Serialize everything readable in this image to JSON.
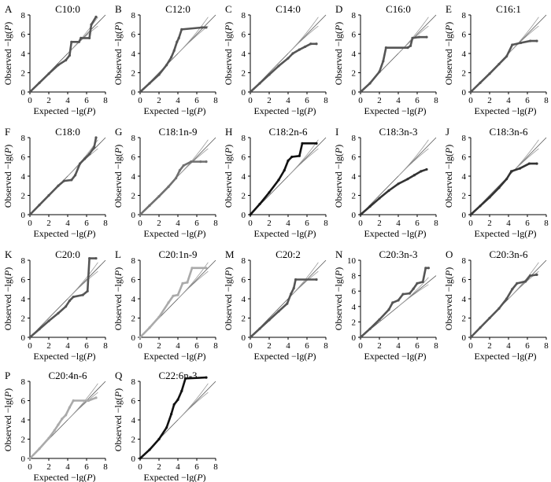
{
  "figure": {
    "xlabel": "Expected −lg(",
    "ylabel": "Observed −lg(",
    "p_symbol": "P",
    "close_paren": ")"
  },
  "chart_data": [
    {
      "id": "A",
      "letter": "A",
      "title": "C10:0",
      "type": "scatter",
      "xlim": [
        0,
        8
      ],
      "ylim": [
        0,
        8
      ],
      "x_ticks": [
        "0",
        "2",
        "4",
        "6",
        "8"
      ],
      "y_ticks": [
        "0",
        "2",
        "4",
        "6",
        "8"
      ],
      "color": "#555555",
      "points": [
        [
          0,
          0
        ],
        [
          1,
          0.95
        ],
        [
          2,
          1.9
        ],
        [
          3,
          2.8
        ],
        [
          3.8,
          3.3
        ],
        [
          4.2,
          3.8
        ],
        [
          4.4,
          5.2
        ],
        [
          5.2,
          5.2
        ],
        [
          5.4,
          5.6
        ],
        [
          6.3,
          5.6
        ],
        [
          6.5,
          7.0
        ],
        [
          7.0,
          7.8
        ]
      ]
    },
    {
      "id": "B",
      "letter": "B",
      "title": "C12:0",
      "type": "scatter",
      "xlim": [
        0,
        8
      ],
      "ylim": [
        0,
        8
      ],
      "x_ticks": [
        "0",
        "2",
        "4",
        "6",
        "8"
      ],
      "y_ticks": [
        "0",
        "2",
        "4",
        "6",
        "8"
      ],
      "color": "#555555",
      "points": [
        [
          0,
          0
        ],
        [
          1,
          0.9
        ],
        [
          2,
          1.8
        ],
        [
          2.8,
          2.8
        ],
        [
          3.3,
          3.6
        ],
        [
          3.6,
          4.3
        ],
        [
          3.9,
          5.2
        ],
        [
          4.1,
          5.6
        ],
        [
          4.4,
          6.5
        ],
        [
          6.6,
          6.7
        ],
        [
          7.0,
          6.7
        ]
      ]
    },
    {
      "id": "C",
      "letter": "C",
      "title": "C14:0",
      "type": "scatter",
      "xlim": [
        0,
        8
      ],
      "ylim": [
        0,
        8
      ],
      "x_ticks": [
        "0",
        "2",
        "4",
        "6",
        "8"
      ],
      "y_ticks": [
        "0",
        "2",
        "4",
        "6",
        "8"
      ],
      "color": "#555555",
      "points": [
        [
          0,
          0
        ],
        [
          1,
          0.9
        ],
        [
          2,
          1.8
        ],
        [
          3,
          2.7
        ],
        [
          4,
          3.5
        ],
        [
          4.5,
          4.0
        ],
        [
          5.2,
          4.4
        ],
        [
          5.8,
          4.7
        ],
        [
          6.4,
          5.0
        ],
        [
          7.0,
          5.0
        ]
      ]
    },
    {
      "id": "D",
      "letter": "D",
      "title": "C16:0",
      "type": "scatter",
      "xlim": [
        0,
        8
      ],
      "ylim": [
        0,
        8
      ],
      "x_ticks": [
        "0",
        "2",
        "4",
        "6",
        "8"
      ],
      "y_ticks": [
        "0",
        "2",
        "4",
        "6",
        "8"
      ],
      "color": "#555555",
      "points": [
        [
          0,
          0
        ],
        [
          1,
          0.9
        ],
        [
          2,
          2.1
        ],
        [
          2.4,
          3.2
        ],
        [
          2.7,
          4.6
        ],
        [
          5.0,
          4.6
        ],
        [
          5.3,
          4.8
        ],
        [
          5.5,
          5.6
        ],
        [
          6.2,
          5.7
        ],
        [
          7.0,
          5.7
        ]
      ]
    },
    {
      "id": "E",
      "letter": "E",
      "title": "C16:1",
      "type": "scatter",
      "xlim": [
        0,
        8
      ],
      "ylim": [
        0,
        8
      ],
      "x_ticks": [
        "0",
        "2",
        "4",
        "6",
        "8"
      ],
      "y_ticks": [
        "0",
        "2",
        "4",
        "6",
        "8"
      ],
      "color": "#555555",
      "points": [
        [
          0,
          0
        ],
        [
          1,
          0.95
        ],
        [
          2,
          1.9
        ],
        [
          3,
          2.9
        ],
        [
          3.8,
          3.7
        ],
        [
          4.4,
          4.9
        ],
        [
          5.3,
          5.1
        ],
        [
          6.3,
          5.3
        ],
        [
          7.0,
          5.3
        ]
      ]
    },
    {
      "id": "F",
      "letter": "F",
      "title": "C18:0",
      "type": "scatter",
      "xlim": [
        0,
        8
      ],
      "ylim": [
        0,
        8
      ],
      "x_ticks": [
        "0",
        "2",
        "4",
        "6",
        "8"
      ],
      "y_ticks": [
        "0",
        "2",
        "4",
        "6",
        "8"
      ],
      "color": "#555555",
      "points": [
        [
          0,
          0
        ],
        [
          1,
          1.0
        ],
        [
          2,
          2.0
        ],
        [
          3,
          3.0
        ],
        [
          3.6,
          3.5
        ],
        [
          4.4,
          3.6
        ],
        [
          4.8,
          4.1
        ],
        [
          5.3,
          5.3
        ],
        [
          5.8,
          5.8
        ],
        [
          6.3,
          6.3
        ],
        [
          6.8,
          7.0
        ],
        [
          7.0,
          8.0
        ]
      ]
    },
    {
      "id": "G",
      "letter": "G",
      "title": "C18:1n-9",
      "type": "scatter",
      "xlim": [
        0,
        8
      ],
      "ylim": [
        0,
        8
      ],
      "x_ticks": [
        "0",
        "2",
        "4",
        "6",
        "8"
      ],
      "y_ticks": [
        "0",
        "2",
        "4",
        "6",
        "8"
      ],
      "color": "#707070",
      "points": [
        [
          0,
          0
        ],
        [
          1,
          0.95
        ],
        [
          2,
          1.9
        ],
        [
          3,
          2.9
        ],
        [
          3.8,
          3.8
        ],
        [
          4.2,
          4.6
        ],
        [
          4.6,
          5.1
        ],
        [
          5.4,
          5.5
        ],
        [
          6.4,
          5.5
        ],
        [
          7.0,
          5.5
        ]
      ]
    },
    {
      "id": "H",
      "letter": "H",
      "title": "C18:2n-6",
      "type": "scatter",
      "xlim": [
        0,
        8
      ],
      "ylim": [
        0,
        8
      ],
      "x_ticks": [
        "0",
        "2",
        "4",
        "6",
        "8"
      ],
      "y_ticks": [
        "0",
        "2",
        "4",
        "6",
        "8"
      ],
      "color": "#111111",
      "points": [
        [
          0,
          0
        ],
        [
          1,
          1.1
        ],
        [
          2,
          2.3
        ],
        [
          3,
          3.6
        ],
        [
          3.6,
          4.6
        ],
        [
          4.0,
          5.6
        ],
        [
          4.4,
          6.0
        ],
        [
          5.2,
          6.1
        ],
        [
          5.5,
          7.4
        ],
        [
          7.0,
          7.4
        ]
      ]
    },
    {
      "id": "I",
      "letter": "I",
      "title": "C18:3n-3",
      "type": "scatter",
      "xlim": [
        0,
        8
      ],
      "ylim": [
        0,
        8
      ],
      "x_ticks": [
        "0",
        "2",
        "4",
        "6",
        "8"
      ],
      "y_ticks": [
        "0",
        "2",
        "4",
        "6",
        "8"
      ],
      "color": "#333333",
      "points": [
        [
          0,
          0
        ],
        [
          1,
          0.85
        ],
        [
          2,
          1.7
        ],
        [
          3,
          2.5
        ],
        [
          4,
          3.2
        ],
        [
          5,
          3.7
        ],
        [
          5.7,
          4.1
        ],
        [
          6.4,
          4.5
        ],
        [
          7.0,
          4.7
        ]
      ]
    },
    {
      "id": "J",
      "letter": "J",
      "title": "C18:3n-6",
      "type": "scatter",
      "xlim": [
        0,
        8
      ],
      "ylim": [
        0,
        8
      ],
      "x_ticks": [
        "0",
        "2",
        "4",
        "6",
        "8"
      ],
      "y_ticks": [
        "0",
        "2",
        "4",
        "6",
        "8"
      ],
      "color": "#333333",
      "points": [
        [
          0,
          0
        ],
        [
          1,
          0.9
        ],
        [
          2,
          1.8
        ],
        [
          3,
          2.8
        ],
        [
          3.8,
          3.7
        ],
        [
          4.3,
          4.5
        ],
        [
          5.2,
          4.8
        ],
        [
          6.2,
          5.3
        ],
        [
          7.0,
          5.3
        ]
      ]
    },
    {
      "id": "K",
      "letter": "K",
      "title": "C20:0",
      "type": "scatter",
      "xlim": [
        0,
        8
      ],
      "ylim": [
        0,
        8
      ],
      "x_ticks": [
        "0",
        "2",
        "4",
        "6",
        "8"
      ],
      "y_ticks": [
        "0",
        "2",
        "4",
        "6",
        "8"
      ],
      "color": "#555555",
      "points": [
        [
          0,
          0
        ],
        [
          1,
          0.85
        ],
        [
          2,
          1.7
        ],
        [
          3,
          2.5
        ],
        [
          3.8,
          3.2
        ],
        [
          4.2,
          3.8
        ],
        [
          4.6,
          4.2
        ],
        [
          5.6,
          4.4
        ],
        [
          6.1,
          4.8
        ],
        [
          6.3,
          8.2
        ],
        [
          7.0,
          8.2
        ]
      ]
    },
    {
      "id": "L",
      "letter": "L",
      "title": "C20:1n-9",
      "type": "scatter",
      "xlim": [
        0,
        8
      ],
      "ylim": [
        0,
        8
      ],
      "x_ticks": [
        "0",
        "2",
        "4",
        "6",
        "8"
      ],
      "y_ticks": [
        "0",
        "2",
        "4",
        "6",
        "8"
      ],
      "color": "#aaaaaa",
      "points": [
        [
          0,
          0
        ],
        [
          1,
          1.0
        ],
        [
          2,
          2.1
        ],
        [
          3,
          3.6
        ],
        [
          3.5,
          4.3
        ],
        [
          4.0,
          4.4
        ],
        [
          4.5,
          5.6
        ],
        [
          5.0,
          5.7
        ],
        [
          5.5,
          7.2
        ],
        [
          7.0,
          7.2
        ]
      ]
    },
    {
      "id": "M",
      "letter": "M",
      "title": "C20:2",
      "type": "scatter",
      "xlim": [
        0,
        8
      ],
      "ylim": [
        0,
        8
      ],
      "x_ticks": [
        "0",
        "2",
        "4",
        "6",
        "8"
      ],
      "y_ticks": [
        "0",
        "2",
        "4",
        "6",
        "8"
      ],
      "color": "#555555",
      "points": [
        [
          0,
          0
        ],
        [
          1,
          0.9
        ],
        [
          2,
          1.8
        ],
        [
          3,
          2.7
        ],
        [
          3.9,
          3.5
        ],
        [
          4.3,
          4.5
        ],
        [
          4.6,
          5.1
        ],
        [
          4.8,
          6.0
        ],
        [
          7.0,
          6.0
        ]
      ]
    },
    {
      "id": "N",
      "letter": "N",
      "title": "C20:3n-3",
      "type": "scatter",
      "xlim": [
        0,
        8
      ],
      "ylim": [
        0,
        10
      ],
      "x_ticks": [
        "0",
        "2",
        "4",
        "6",
        "8"
      ],
      "y_ticks": [
        "0",
        "2",
        "4",
        "6",
        "8",
        "10"
      ],
      "color": "#555555",
      "points": [
        [
          0,
          0
        ],
        [
          1,
          1.1
        ],
        [
          2,
          2.3
        ],
        [
          3,
          3.6
        ],
        [
          3.4,
          4.5
        ],
        [
          4.0,
          4.8
        ],
        [
          4.5,
          5.6
        ],
        [
          5.2,
          5.7
        ],
        [
          5.6,
          6.3
        ],
        [
          6.0,
          7.0
        ],
        [
          6.6,
          7.2
        ],
        [
          6.9,
          9.0
        ],
        [
          7.2,
          9.0
        ]
      ]
    },
    {
      "id": "O",
      "letter": "O",
      "title": "C20:3n-6",
      "type": "scatter",
      "xlim": [
        0,
        8
      ],
      "ylim": [
        0,
        8
      ],
      "x_ticks": [
        "0",
        "2",
        "4",
        "6",
        "8"
      ],
      "y_ticks": [
        "0",
        "2",
        "4",
        "6",
        "8"
      ],
      "color": "#555555",
      "points": [
        [
          0,
          0
        ],
        [
          1,
          1.0
        ],
        [
          2,
          2.0
        ],
        [
          3,
          3.0
        ],
        [
          3.8,
          4.0
        ],
        [
          4.4,
          5.0
        ],
        [
          4.9,
          5.6
        ],
        [
          5.8,
          5.8
        ],
        [
          6.3,
          6.4
        ],
        [
          7.0,
          6.5
        ]
      ]
    },
    {
      "id": "P",
      "letter": "P",
      "title": "C20:4n-6",
      "type": "scatter",
      "xlim": [
        0,
        8
      ],
      "ylim": [
        0,
        8
      ],
      "x_ticks": [
        "0",
        "2",
        "4",
        "6",
        "8"
      ],
      "y_ticks": [
        "0",
        "2",
        "4",
        "6",
        "8"
      ],
      "color": "#aaaaaa",
      "points": [
        [
          0,
          0
        ],
        [
          1,
          1.0
        ],
        [
          2,
          2.1
        ],
        [
          2.6,
          2.9
        ],
        [
          3.0,
          3.5
        ],
        [
          3.4,
          4.1
        ],
        [
          3.8,
          4.5
        ],
        [
          4.2,
          5.3
        ],
        [
          4.6,
          6.0
        ],
        [
          6.2,
          6.0
        ],
        [
          7.0,
          6.3
        ]
      ]
    },
    {
      "id": "Q",
      "letter": "Q",
      "title": "C22:6n-3",
      "type": "scatter",
      "xlim": [
        0,
        8
      ],
      "ylim": [
        0,
        8
      ],
      "x_ticks": [
        "0",
        "2",
        "4",
        "6",
        "8"
      ],
      "y_ticks": [
        "0",
        "2",
        "4",
        "6",
        "8"
      ],
      "color": "#111111",
      "points": [
        [
          0,
          0
        ],
        [
          1,
          0.9
        ],
        [
          2,
          2.0
        ],
        [
          2.8,
          3.2
        ],
        [
          3.3,
          4.6
        ],
        [
          3.6,
          5.6
        ],
        [
          4.0,
          6.1
        ],
        [
          4.4,
          7.0
        ],
        [
          4.8,
          8.3
        ],
        [
          7.0,
          8.4
        ]
      ]
    }
  ]
}
